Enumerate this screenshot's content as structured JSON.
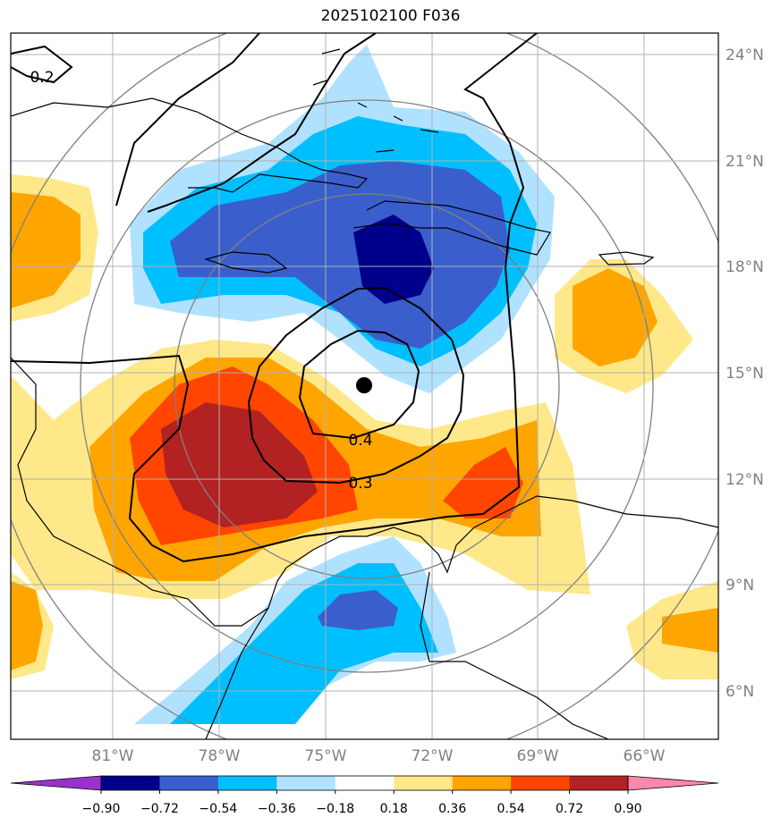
{
  "title": "2025102100 F036",
  "map": {
    "lat_labels": [
      "24°N",
      "21°N",
      "18°N",
      "15°N",
      "12°N",
      "9°N",
      "6°N"
    ],
    "lon_labels": [
      "81°W",
      "78°W",
      "75°W",
      "72°W",
      "69°W",
      "66°W"
    ],
    "contour_labels": [
      "0.2",
      "0.4",
      "0.3"
    ],
    "storm_center": {
      "lat": 14.6,
      "lon": -73.5
    }
  },
  "colorbar": {
    "ticks": [
      "−0.90",
      "−0.72",
      "−0.54",
      "−0.36",
      "−0.18",
      "0.18",
      "0.36",
      "0.54",
      "0.72",
      "0.90"
    ],
    "colors": [
      "#9932cc",
      "#00008b",
      "#3a5fcd",
      "#00bfff",
      "#b0e2ff",
      "#ffffff",
      "#ffe88a",
      "#ffa500",
      "#ff4500",
      "#b22222",
      "#ff88aa"
    ]
  }
}
